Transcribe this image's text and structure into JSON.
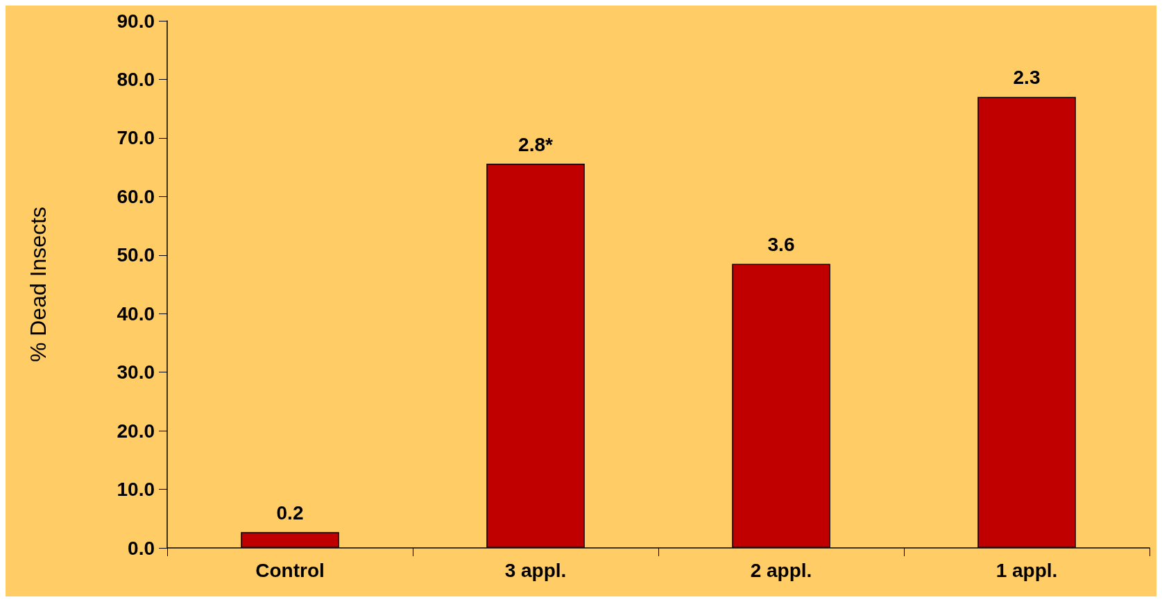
{
  "chart_data": {
    "type": "bar",
    "ylabel": "% Dead Insects",
    "categories": [
      "Control",
      "3 appl.",
      "2 appl.",
      "1 appl."
    ],
    "values": [
      2.7,
      65.6,
      48.5,
      77.0
    ],
    "annotations": [
      {
        "text": "0.2",
        "x": "Control",
        "y": 2.7
      },
      {
        "text": "2.8*",
        "x": "3 appl.",
        "y": 65.6
      },
      {
        "text": "3.6",
        "x": "2 appl.",
        "y": 48.5
      },
      {
        "text": "2.3",
        "x": "1 appl.",
        "y": 77.0
      }
    ],
    "color": "#c00000",
    "ylim": [
      0,
      90
    ],
    "yticks": [
      {
        "value": 0,
        "label": "0.0"
      },
      {
        "value": 10,
        "label": "10.0"
      },
      {
        "value": 20,
        "label": "20.0"
      },
      {
        "value": 30,
        "label": "30.0"
      },
      {
        "value": 40,
        "label": "40.0"
      },
      {
        "value": 50,
        "label": "50.0"
      },
      {
        "value": 60,
        "label": "60.0"
      },
      {
        "value": 70,
        "label": "70.0"
      },
      {
        "value": 80,
        "label": "80.0"
      },
      {
        "value": 90,
        "label": "90.0"
      }
    ],
    "grid": false
  }
}
